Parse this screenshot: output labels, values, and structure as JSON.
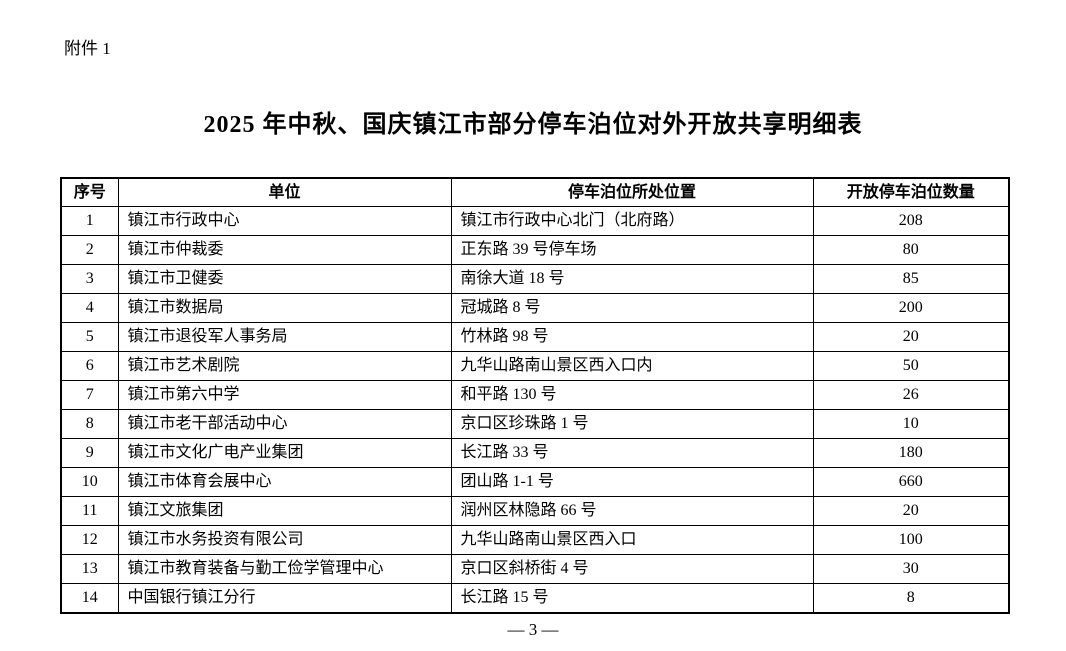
{
  "page": {
    "attachment_label": "附件 1",
    "title": "2025 年中秋、国庆镇江市部分停车泊位对外开放共享明细表",
    "page_number": "— 3 —"
  },
  "table": {
    "headers": [
      "序号",
      "单位",
      "停车泊位所处位置",
      "开放停车泊位数量"
    ],
    "rows": [
      [
        "1",
        "镇江市行政中心",
        "镇江市行政中心北门（北府路）",
        "208"
      ],
      [
        "2",
        "镇江市仲裁委",
        "正东路 39 号停车场",
        "80"
      ],
      [
        "3",
        "镇江市卫健委",
        "南徐大道 18 号",
        "85"
      ],
      [
        "4",
        "镇江市数据局",
        "冠城路 8 号",
        "200"
      ],
      [
        "5",
        "镇江市退役军人事务局",
        "竹林路 98 号",
        "20"
      ],
      [
        "6",
        "镇江市艺术剧院",
        "九华山路南山景区西入口内",
        "50"
      ],
      [
        "7",
        "镇江市第六中学",
        "和平路 130 号",
        "26"
      ],
      [
        "8",
        "镇江市老干部活动中心",
        "京口区珍珠路 1 号",
        "10"
      ],
      [
        "9",
        "镇江市文化广电产业集团",
        "长江路 33 号",
        "180"
      ],
      [
        "10",
        "镇江市体育会展中心",
        "团山路 1-1 号",
        "660"
      ],
      [
        "11",
        "镇江文旅集团",
        "润州区林隐路 66 号",
        "20"
      ],
      [
        "12",
        "镇江市水务投资有限公司",
        "九华山路南山景区西入口",
        "100"
      ],
      [
        "13",
        "镇江市教育装备与勤工俭学管理中心",
        "京口区斜桥街 4 号",
        "30"
      ],
      [
        "14",
        "中国银行镇江分行",
        "长江路 15 号",
        "8"
      ]
    ]
  },
  "colors": {
    "text": "#000000",
    "background": "#ffffff",
    "border": "#000000"
  }
}
